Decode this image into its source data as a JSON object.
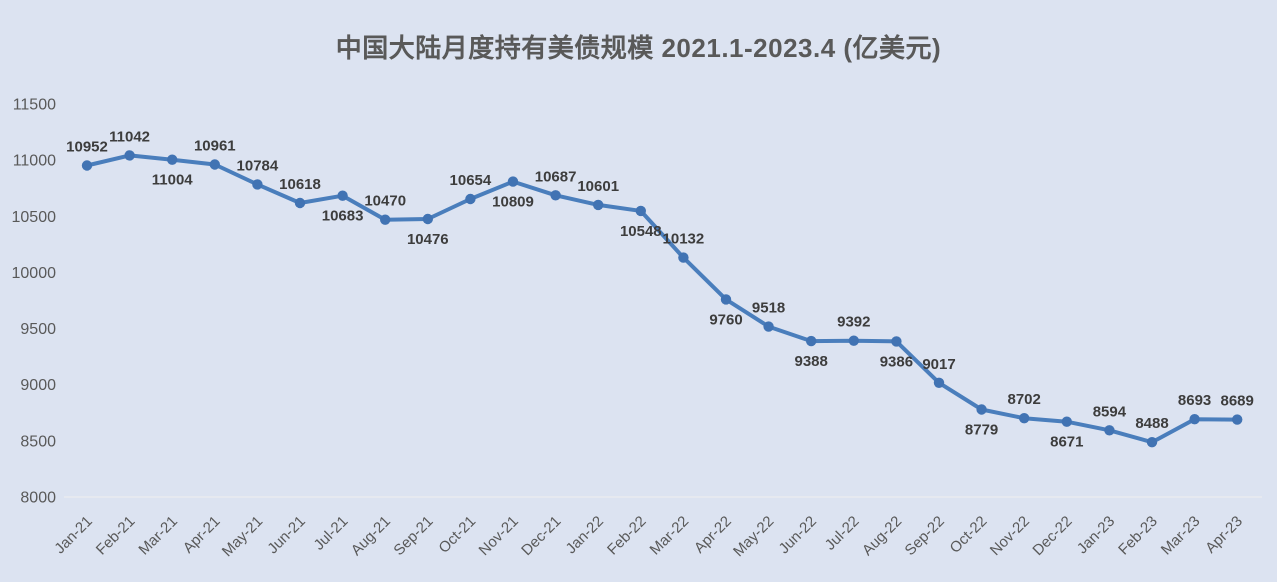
{
  "chart": {
    "title": "中国大陆月度持有美债规模 2021.1-2023.4 (亿美元)"
  },
  "chart_data": {
    "type": "line",
    "title": "中国大陆月度持有美债规模 2021.1-2023.4 (亿美元)",
    "categories": [
      "Jan-21",
      "Feb-21",
      "Mar-21",
      "Apr-21",
      "May-21",
      "Jun-21",
      "Jul-21",
      "Aug-21",
      "Sep-21",
      "Oct-21",
      "Nov-21",
      "Dec-21",
      "Jan-22",
      "Feb-22",
      "Mar-22",
      "Apr-22",
      "May-22",
      "Jun-22",
      "Jul-22",
      "Aug-22",
      "Sep-22",
      "Oct-22",
      "Nov-22",
      "Dec-22",
      "Jan-23",
      "Feb-23",
      "Mar-23",
      "Apr-23"
    ],
    "values": [
      10952,
      11042,
      11004,
      10961,
      10784,
      10618,
      10683,
      10470,
      10476,
      10654,
      10809,
      10687,
      10601,
      10548,
      10132,
      9760,
      9518,
      9388,
      9392,
      9386,
      9017,
      8779,
      8702,
      8671,
      8594,
      8488,
      8693,
      8689
    ],
    "label_side": [
      "above",
      "above",
      "below",
      "above",
      "above",
      "above",
      "below",
      "above",
      "below",
      "above",
      "below",
      "above",
      "above",
      "below",
      "above",
      "below",
      "above",
      "below",
      "above",
      "below",
      "above",
      "below",
      "above",
      "below",
      "above",
      "above",
      "above",
      "above"
    ],
    "yticks": [
      8000,
      8500,
      9000,
      9500,
      10000,
      10500,
      11000,
      11500
    ],
    "ylim": [
      8000,
      11500
    ],
    "xlabel": "",
    "ylabel": "",
    "grid": false,
    "legend": "none",
    "data_labels": true,
    "x_tick_rotation": -45,
    "colors": {
      "background": "#dce3f1",
      "line": "#4a7ebc",
      "marker": "#4173b3",
      "title_text": "#595959",
      "axis_text": "#595959",
      "data_label_text": "#3d3d3d",
      "axis_line": "#e9ebef"
    }
  }
}
